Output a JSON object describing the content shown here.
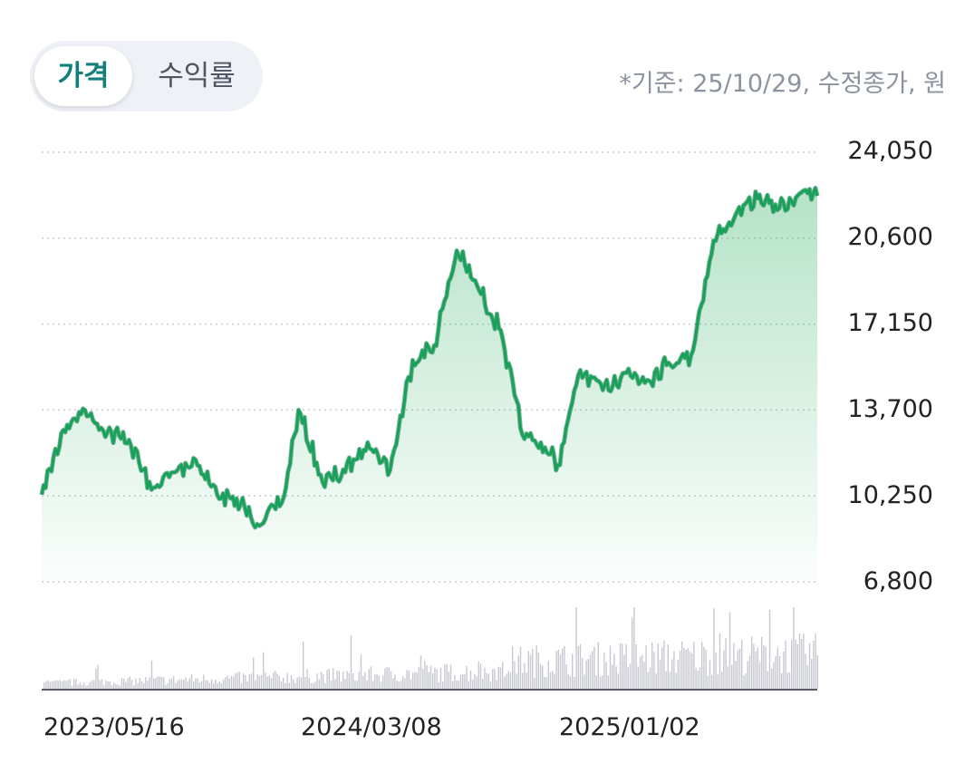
{
  "tabs": [
    {
      "label": "가격",
      "active": true
    },
    {
      "label": "수익률",
      "active": false
    }
  ],
  "basis_note": "*기준: 25/10/29, 수정종가, 원",
  "colors": {
    "line": "#19a05a",
    "line_dark": "#0f7a45",
    "fill": "#3cb46e",
    "volume": "#c7c9d1",
    "grid": "#c9ccd2",
    "tab_active_text": "#12807a"
  },
  "chart_data": {
    "type": "line",
    "title": "",
    "xlabel": "",
    "ylabel": "",
    "y_ticks": [
      "24,050",
      "20,600",
      "17,150",
      "13,700",
      "10,250",
      "6,800"
    ],
    "ylim": [
      6800,
      24050
    ],
    "x_tick_labels": [
      "2023/05/16",
      "2024/03/08",
      "2025/01/02"
    ],
    "grid": "horizontal dotted",
    "has_volume_bars": true,
    "series": [
      {
        "x": [
          "2023/05/16",
          "2023/06/10",
          "2023/07/05",
          "2023/07/31",
          "2023/08/25",
          "2023/09/20",
          "2023/10/15",
          "2023/11/10",
          "2023/12/05",
          "2024/01/01",
          "2024/01/25",
          "2024/02/20",
          "2024/03/08",
          "2024/04/05",
          "2024/05/01",
          "2024/05/27",
          "2024/06/22",
          "2024/07/18",
          "2024/08/12",
          "2024/09/07",
          "2024/10/03",
          "2024/10/28",
          "2024/11/22",
          "2024/12/18",
          "2025/01/02",
          "2025/01/28",
          "2025/02/23",
          "2025/03/20",
          "2025/04/15",
          "2025/05/10",
          "2025/06/05",
          "2025/07/01",
          "2025/07/26",
          "2025/08/21",
          "2025/09/15",
          "2025/10/09",
          "2025/10/29"
        ],
        "values": [
          10300,
          12900,
          13700,
          12800,
          12500,
          10500,
          11200,
          11700,
          10300,
          9900,
          9100,
          10200,
          13700,
          10800,
          11200,
          12400,
          11300,
          15700,
          16300,
          20100,
          18500,
          16900,
          12700,
          12200,
          11500,
          15300,
          14500,
          15200,
          14900,
          15600,
          15900,
          20500,
          21500,
          22200,
          21800,
          22400,
          22300
        ]
      }
    ]
  }
}
